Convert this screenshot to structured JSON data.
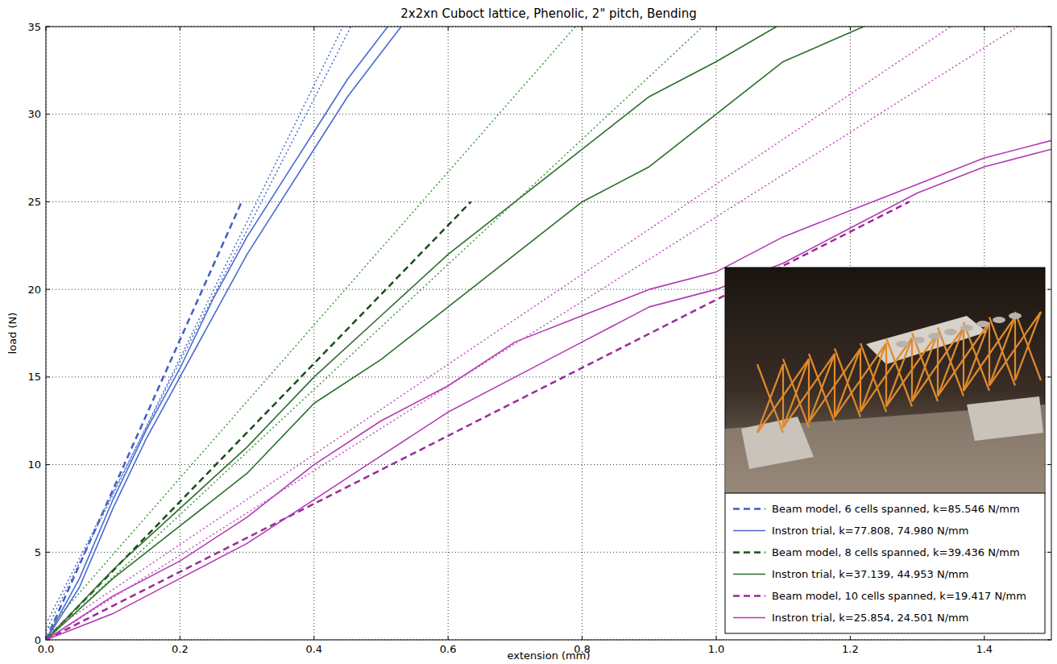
{
  "chart_data": {
    "type": "line",
    "title": "2x2xn Cuboct lattice, Phenolic, 2\" pitch, Bending",
    "x_label": "extension (mm)",
    "y_label": "load (N)",
    "xlim": [
      0,
      1.5
    ],
    "ylim": [
      0,
      35
    ],
    "xticks": [
      {
        "value": 0,
        "label": "0.0"
      },
      0.2,
      0.4,
      0.6,
      0.8,
      {
        "value": 1,
        "label": "1.0"
      },
      1.2,
      1.4
    ],
    "yticks": [
      0,
      5,
      10,
      15,
      20,
      25,
      30,
      35
    ],
    "grid": true,
    "legend": "lower right",
    "series": [
      {
        "name": "Beam model, 6 cells spanned, k=85.546 N/mm",
        "color": "#3f5fc4",
        "line_style": "dashed",
        "x": [
          0,
          0.292
        ],
        "values": [
          0,
          25
        ]
      },
      {
        "name": "Instron trial, k=77.808, 74.980 N/mm",
        "color": "#4a6ad0",
        "line_style": "solid",
        "x": [
          0,
          0.05,
          0.1,
          0.15,
          0.2,
          0.25,
          0.3,
          0.35,
          0.4,
          0.45,
          0.51
        ],
        "values": [
          0,
          3.5,
          8,
          12,
          15.5,
          19.5,
          23,
          26,
          29,
          32,
          35
        ]
      },
      {
        "name": null,
        "color": "#4a6ad0",
        "line_style": "solid",
        "x": [
          0,
          0.05,
          0.1,
          0.15,
          0.2,
          0.25,
          0.3,
          0.35,
          0.4,
          0.45,
          0.5,
          0.53
        ],
        "values": [
          0,
          3,
          7.5,
          11.5,
          15,
          18.5,
          22,
          25,
          28,
          31,
          33.5,
          35
        ]
      },
      {
        "name": null,
        "color": "#4a6ad0",
        "line_style": "dotted",
        "x": [
          0,
          0.443
        ],
        "values": [
          0.5,
          35
        ]
      },
      {
        "name": null,
        "color": "#4a6ad0",
        "line_style": "dotted",
        "x": [
          0,
          0.455
        ],
        "values": [
          0.9,
          35
        ]
      },
      {
        "name": "Beam model, 8 cells spanned, k=39.436 N/mm",
        "color": "#1a4d1a",
        "line_style": "dashed",
        "x": [
          0,
          0.634
        ],
        "values": [
          0,
          25
        ]
      },
      {
        "name": "Instron trial, k=37.139, 44.953 N/mm",
        "color": "#2a6e2a",
        "line_style": "solid",
        "x": [
          0,
          0.1,
          0.2,
          0.3,
          0.4,
          0.5,
          0.6,
          0.7,
          0.8,
          0.9,
          1.0,
          1.09
        ],
        "values": [
          0,
          4,
          7.5,
          11,
          15,
          18.5,
          22,
          25,
          28,
          31,
          33,
          35
        ]
      },
      {
        "name": null,
        "color": "#2a6e2a",
        "line_style": "solid",
        "x": [
          0,
          0.1,
          0.2,
          0.3,
          0.4,
          0.5,
          0.6,
          0.7,
          0.8,
          0.9,
          1.0,
          1.1,
          1.22
        ],
        "values": [
          0,
          3.5,
          6.5,
          9.5,
          13.5,
          16,
          19,
          22,
          25,
          27,
          30,
          33,
          35
        ]
      },
      {
        "name": null,
        "color": "#3c9a3c",
        "line_style": "dotted",
        "x": [
          0,
          0.79
        ],
        "values": [
          0.5,
          35
        ]
      },
      {
        "name": null,
        "color": "#3c9a3c",
        "line_style": "dotted",
        "x": [
          0,
          0.98
        ],
        "values": [
          0,
          35
        ]
      },
      {
        "name": "Beam model, 10 cells spanned, k=19.417 N/mm",
        "color": "#9a2a9a",
        "line_style": "dashed",
        "x": [
          0,
          1.288
        ],
        "values": [
          0,
          25
        ]
      },
      {
        "name": "Instron trial, k=25.854, 24.501 N/mm",
        "color": "#b23ab2",
        "line_style": "solid",
        "x": [
          0,
          0.1,
          0.2,
          0.3,
          0.4,
          0.5,
          0.6,
          0.7,
          0.8,
          0.9,
          1.0,
          1.1,
          1.2,
          1.3,
          1.4,
          1.5
        ],
        "values": [
          0,
          2.5,
          4.5,
          7,
          10,
          12.5,
          14.5,
          17,
          18.5,
          20,
          21,
          23,
          24.5,
          26,
          27.5,
          28.5
        ]
      },
      {
        "name": null,
        "color": "#b23ab2",
        "line_style": "solid",
        "x": [
          0,
          0.1,
          0.2,
          0.3,
          0.4,
          0.5,
          0.6,
          0.7,
          0.8,
          0.9,
          1.0,
          1.1,
          1.2,
          1.3,
          1.4,
          1.5
        ],
        "values": [
          0,
          1.5,
          3.5,
          5.5,
          8,
          10.5,
          13,
          15,
          17,
          19,
          20,
          21.5,
          23.5,
          25.5,
          27,
          28
        ]
      },
      {
        "name": null,
        "color": "#c050c0",
        "line_style": "dotted",
        "x": [
          0,
          1.35
        ],
        "values": [
          0.3,
          35
        ]
      },
      {
        "name": null,
        "color": "#c050c0",
        "line_style": "dotted",
        "x": [
          0,
          1.45
        ],
        "values": [
          0,
          35
        ]
      }
    ]
  }
}
